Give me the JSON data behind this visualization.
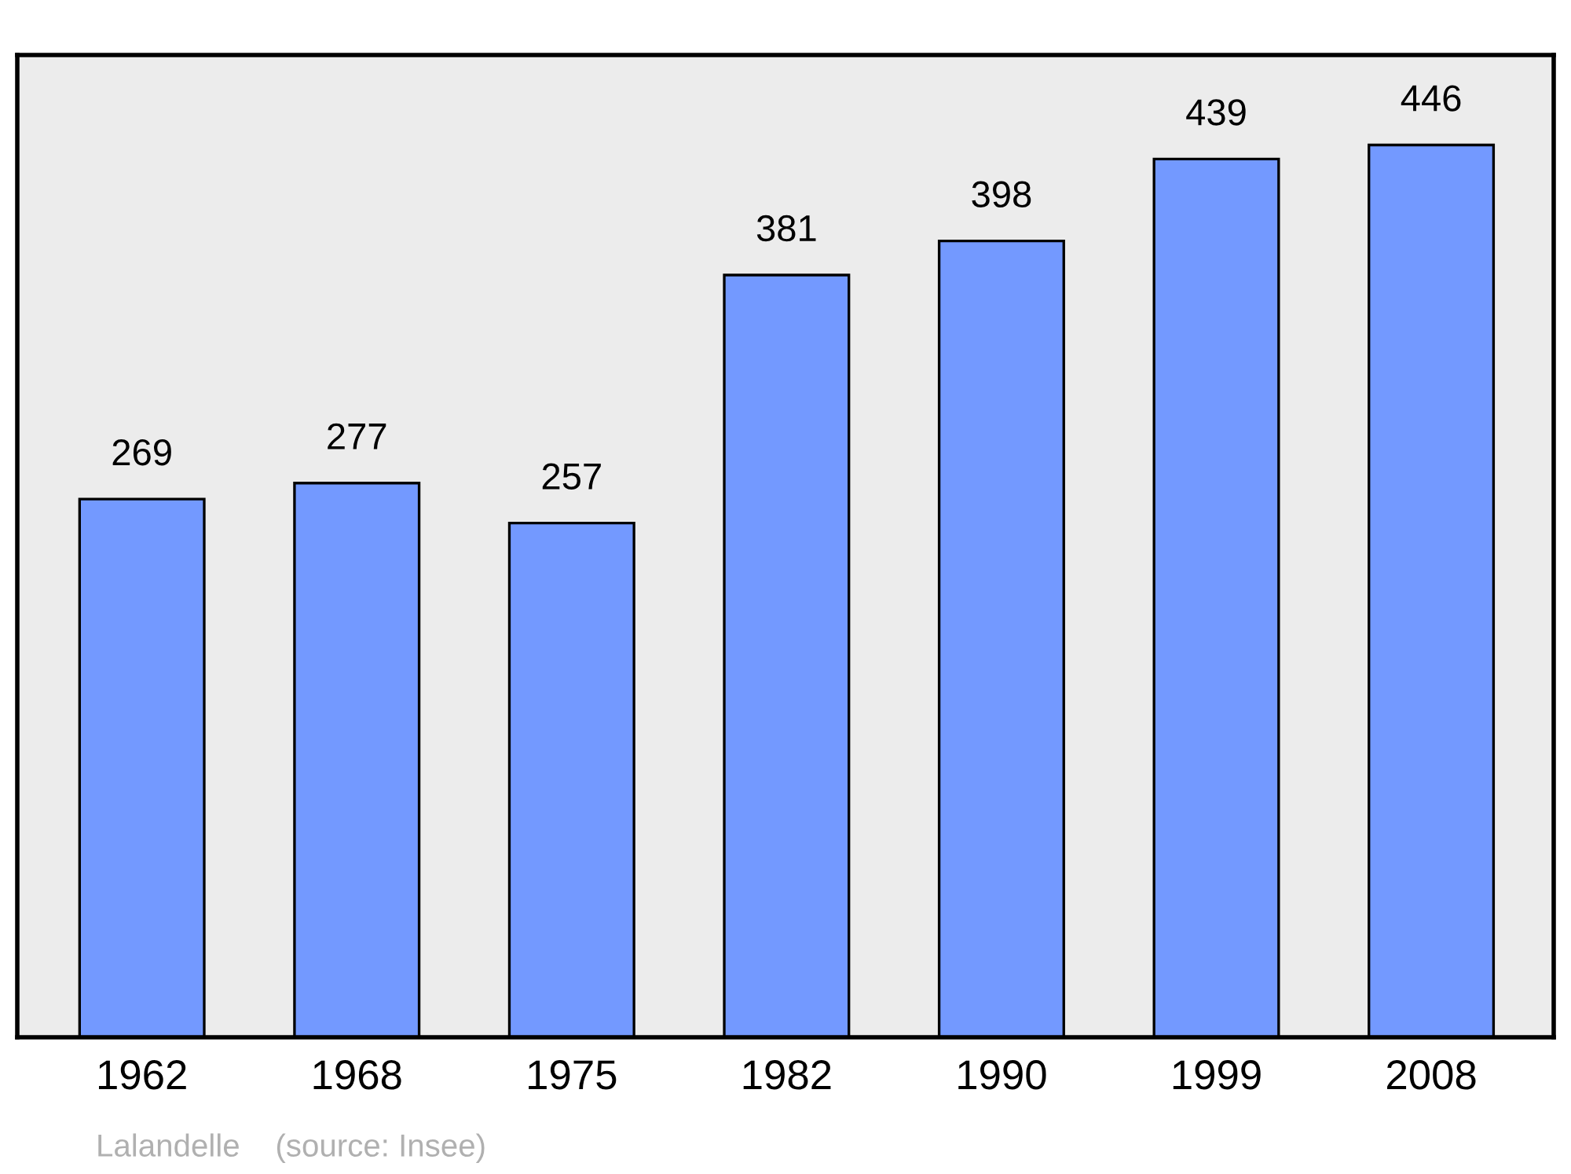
{
  "chart_data": {
    "type": "bar",
    "categories": [
      "1962",
      "1968",
      "1975",
      "1982",
      "1990",
      "1999",
      "2008"
    ],
    "values": [
      269,
      277,
      257,
      381,
      398,
      439,
      446
    ],
    "color": "#7399ff",
    "ylim": [
      0,
      491
    ],
    "data_labels": true,
    "grid": false,
    "legend": false,
    "annotations": [
      "Lalandelle    (source: Insee)"
    ]
  }
}
